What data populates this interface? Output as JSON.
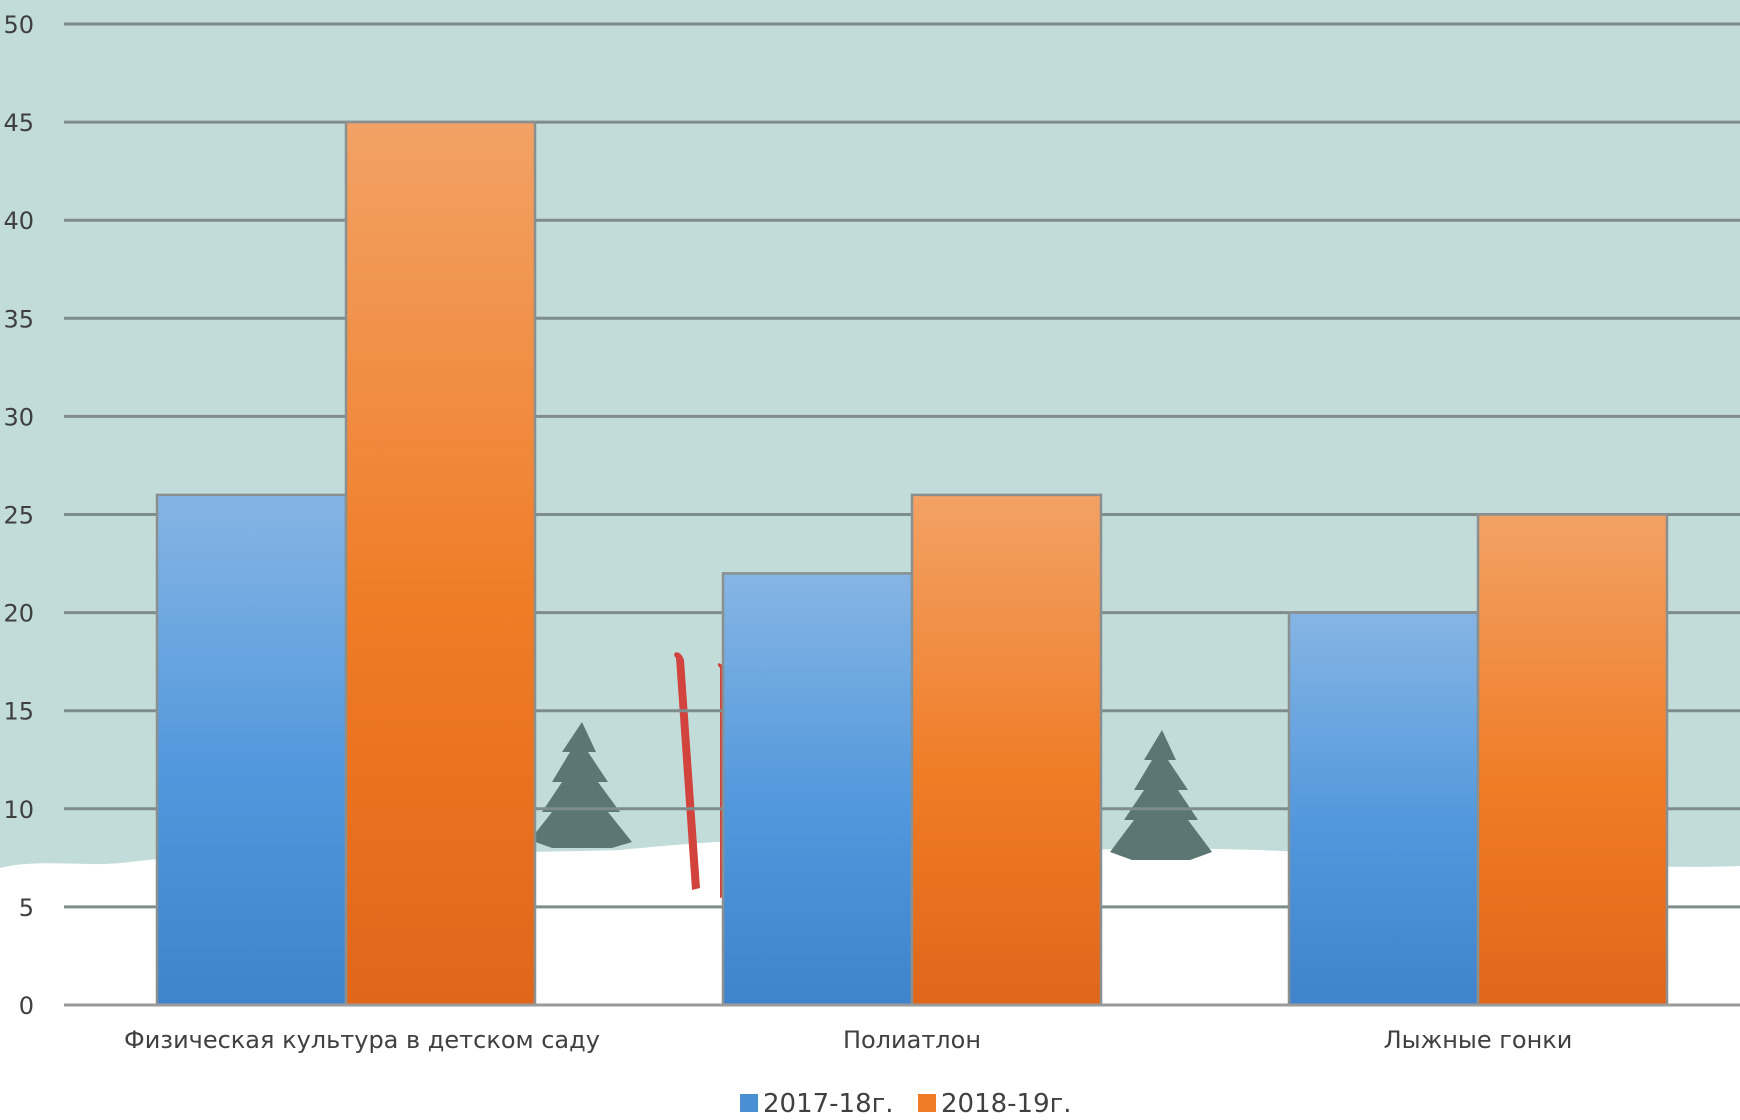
{
  "chart_data": {
    "type": "bar",
    "categories": [
      "Физическая культура в детском саду",
      "Полиатлон",
      "Лыжные гонки"
    ],
    "series": [
      {
        "name": "2017-18г.",
        "values": [
          26,
          22,
          20
        ],
        "color": "#4a8fd3"
      },
      {
        "name": "2018-19г.",
        "values": [
          45,
          26,
          25
        ],
        "color": "#f07c28"
      }
    ],
    "title": "",
    "xlabel": "",
    "ylabel": "",
    "ylim": [
      0,
      50
    ],
    "y_ticks": [
      "0",
      "5",
      "10",
      "15",
      "20",
      "25",
      "30",
      "35",
      "40",
      "45",
      "50"
    ],
    "grid": true,
    "legend_position": "bottom-center"
  },
  "colors": {
    "sky": "#c2dcda",
    "snow": "#ffffff",
    "gridline": "#7f8c8c",
    "tree": "#5c7773",
    "skis": "#d2433d"
  }
}
